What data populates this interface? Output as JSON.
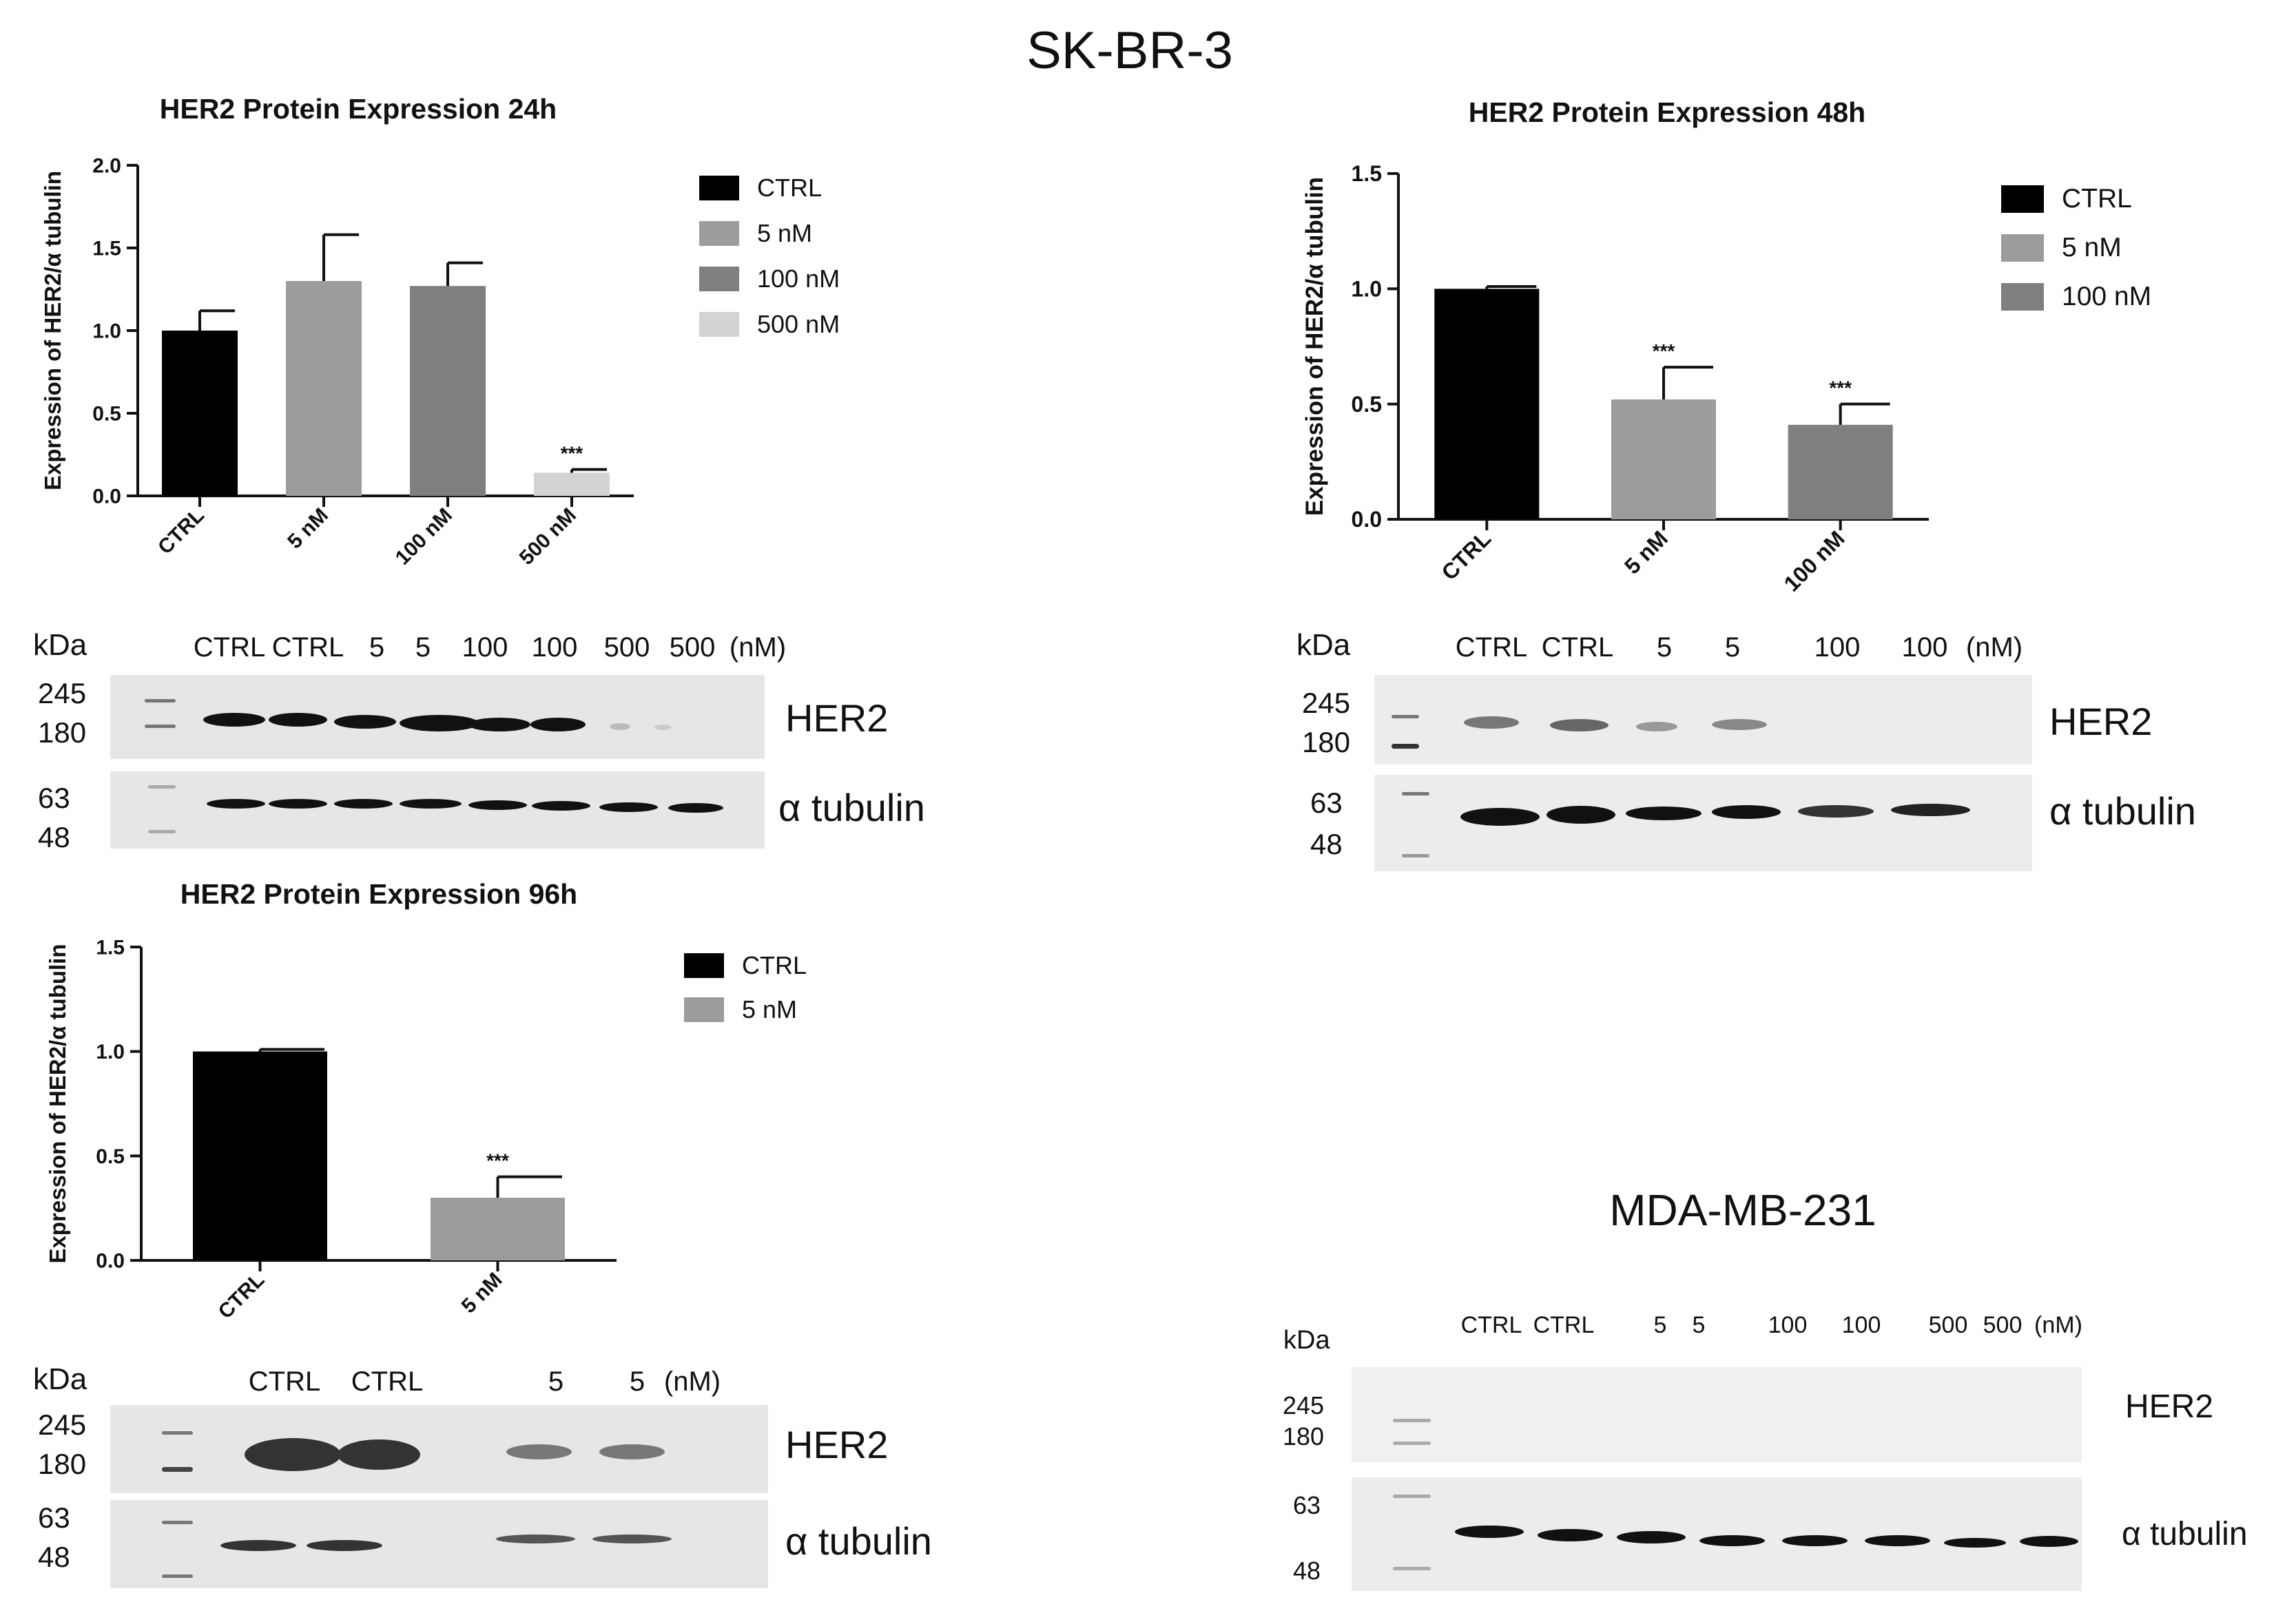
{
  "figure": {
    "title": "SK-BR-3",
    "second_title": "MDA-MB-231"
  },
  "chart_data": [
    {
      "type": "bar",
      "title": "HER2 Protein Expression 24h",
      "ylabel": "Expression of HER2/α tubulin",
      "xlabel": "",
      "categories": [
        "CTRL",
        "5 nM",
        "100 nM",
        "500 nM"
      ],
      "values": [
        1.0,
        1.3,
        1.27,
        0.14
      ],
      "errors": [
        0.12,
        0.28,
        0.14,
        0.02
      ],
      "annotations": [
        "",
        "",
        "",
        "***"
      ],
      "colors": [
        "#000000",
        "#9c9c9c",
        "#7f7f7f",
        "#d3d3d3"
      ],
      "ylim": [
        0,
        2.0
      ],
      "yticks": [
        "0.0",
        "0.5",
        "1.0",
        "1.5",
        "2.0"
      ],
      "legend": [
        "CTRL",
        "5 nM",
        "100 nM",
        "500 nM"
      ],
      "legend_position": "right",
      "grid": false
    },
    {
      "type": "bar",
      "title": "HER2 Protein Expression 48h",
      "ylabel": "Expression of HER2/α tubulin",
      "xlabel": "",
      "categories": [
        "CTRL",
        "5 nM",
        "100 nM"
      ],
      "values": [
        1.0,
        0.52,
        0.41
      ],
      "errors": [
        0.01,
        0.14,
        0.09
      ],
      "annotations": [
        "",
        "***",
        "***"
      ],
      "colors": [
        "#000000",
        "#9c9c9c",
        "#7f7f7f"
      ],
      "ylim": [
        0,
        1.5
      ],
      "yticks": [
        "0.0",
        "0.5",
        "1.0",
        "1.5"
      ],
      "legend": [
        "CTRL",
        "5 nM",
        "100 nM"
      ],
      "legend_position": "right",
      "grid": false
    },
    {
      "type": "bar",
      "title": "HER2 Protein Expression 96h",
      "ylabel": "Expression of HER2/α tubulin",
      "xlabel": "",
      "categories": [
        "CTRL",
        "5 nM"
      ],
      "values": [
        1.0,
        0.3
      ],
      "errors": [
        0.01,
        0.1
      ],
      "annotations": [
        "",
        "***"
      ],
      "colors": [
        "#000000",
        "#9c9c9c"
      ],
      "ylim": [
        0,
        1.5
      ],
      "yticks": [
        "0.0",
        "0.5",
        "1.0",
        "1.5"
      ],
      "legend": [
        "CTRL",
        "5 nM"
      ],
      "legend_position": "right",
      "grid": false
    }
  ],
  "blots": [
    {
      "kda": "kDa",
      "lanes": [
        "CTRL",
        "CTRL",
        "5",
        "5",
        "100",
        "100",
        "500",
        "500"
      ],
      "unit": "(nM)",
      "her2_mw": [
        "245",
        "180"
      ],
      "tubulin_mw": [
        "63",
        "48"
      ],
      "her2_label": "HER2",
      "tubulin_label": "α tubulin"
    },
    {
      "kda": "kDa",
      "lanes": [
        "CTRL",
        "CTRL",
        "5",
        "5",
        "100",
        "100"
      ],
      "unit": "(nM)",
      "her2_mw": [
        "245",
        "180"
      ],
      "tubulin_mw": [
        "63",
        "48"
      ],
      "her2_label": "HER2",
      "tubulin_label": "α tubulin"
    },
    {
      "kda": "kDa",
      "lanes": [
        "CTRL",
        "CTRL",
        "5",
        "5"
      ],
      "unit": "(nM)",
      "her2_mw": [
        "245",
        "180"
      ],
      "tubulin_mw": [
        "63",
        "48"
      ],
      "her2_label": "HER2",
      "tubulin_label": "α tubulin"
    },
    {
      "kda": "kDa",
      "lanes": [
        "CTRL",
        "CTRL",
        "5",
        "5",
        "100",
        "100",
        "500",
        "500"
      ],
      "unit": "(nM)",
      "her2_mw": [
        "245",
        "180"
      ],
      "tubulin_mw": [
        "63",
        "48"
      ],
      "her2_label": "HER2",
      "tubulin_label": "α tubulin"
    }
  ]
}
